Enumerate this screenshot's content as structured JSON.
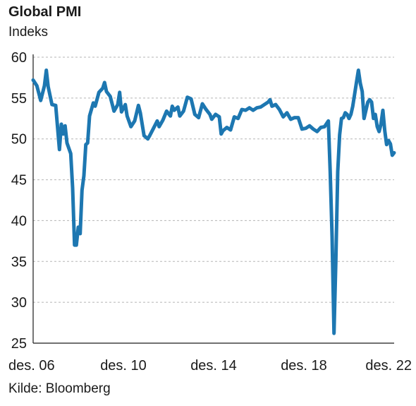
{
  "chart_data": {
    "type": "line",
    "title": "Global PMI",
    "ylabel": "Indeks",
    "source": "Kilde: Bloomberg",
    "ylim": [
      25,
      60
    ],
    "yticks": [
      25,
      30,
      35,
      40,
      45,
      50,
      55,
      60
    ],
    "grid": true,
    "xlim": [
      "2006-12",
      "2022-12"
    ],
    "x_tick_labels": [
      {
        "x": "2006-12",
        "label": "des. 06"
      },
      {
        "x": "2010-12",
        "label": "des. 10"
      },
      {
        "x": "2014-12",
        "label": "des. 14"
      },
      {
        "x": "2018-12",
        "label": "des. 18"
      },
      {
        "x": "2022-12",
        "label": "des. 22"
      }
    ],
    "series": [
      {
        "color": "#1d77b1",
        "points": [
          [
            "2006-12",
            57.2
          ],
          [
            "2007-02",
            56.5
          ],
          [
            "2007-04",
            54.7
          ],
          [
            "2007-06",
            56.5
          ],
          [
            "2007-07",
            58.4
          ],
          [
            "2007-08",
            56.4
          ],
          [
            "2007-10",
            54.2
          ],
          [
            "2007-12",
            54.1
          ],
          [
            "2008-02",
            48.7
          ],
          [
            "2008-03",
            51.8
          ],
          [
            "2008-04",
            50.6
          ],
          [
            "2008-05",
            51.6
          ],
          [
            "2008-06",
            49.5
          ],
          [
            "2008-08",
            48.2
          ],
          [
            "2008-09",
            44.0
          ],
          [
            "2008-10",
            37.0
          ],
          [
            "2008-11",
            37.0
          ],
          [
            "2008-12",
            39.2
          ],
          [
            "2009-01",
            38.4
          ],
          [
            "2009-02",
            43.7
          ],
          [
            "2009-03",
            45.5
          ],
          [
            "2009-04",
            49.3
          ],
          [
            "2009-05",
            49.5
          ],
          [
            "2009-06",
            52.8
          ],
          [
            "2009-08",
            54.4
          ],
          [
            "2009-09",
            54.0
          ],
          [
            "2009-11",
            55.7
          ],
          [
            "2010-01",
            56.2
          ],
          [
            "2010-02",
            56.9
          ],
          [
            "2010-03",
            55.8
          ],
          [
            "2010-05",
            55.2
          ],
          [
            "2010-07",
            53.4
          ],
          [
            "2010-09",
            54.2
          ],
          [
            "2010-10",
            55.7
          ],
          [
            "2010-11",
            53.3
          ],
          [
            "2011-01",
            54.2
          ],
          [
            "2011-02",
            52.8
          ],
          [
            "2011-04",
            51.5
          ],
          [
            "2011-06",
            52.2
          ],
          [
            "2011-08",
            54.1
          ],
          [
            "2011-09",
            53.2
          ],
          [
            "2011-11",
            50.4
          ],
          [
            "2012-01",
            50.0
          ],
          [
            "2012-02",
            50.4
          ],
          [
            "2012-04",
            51.3
          ],
          [
            "2012-06",
            52.2
          ],
          [
            "2012-07",
            51.5
          ],
          [
            "2012-09",
            52.3
          ],
          [
            "2012-11",
            53.4
          ],
          [
            "2013-01",
            52.8
          ],
          [
            "2013-02",
            54.0
          ],
          [
            "2013-03",
            53.5
          ],
          [
            "2013-05",
            53.9
          ],
          [
            "2013-06",
            52.8
          ],
          [
            "2013-08",
            53.4
          ],
          [
            "2013-10",
            55.1
          ],
          [
            "2013-12",
            54.9
          ],
          [
            "2014-02",
            53.0
          ],
          [
            "2014-04",
            52.6
          ],
          [
            "2014-06",
            54.3
          ],
          [
            "2014-08",
            53.6
          ],
          [
            "2014-10",
            53.0
          ],
          [
            "2014-11",
            52.4
          ],
          [
            "2015-01",
            53.0
          ],
          [
            "2015-03",
            52.7
          ],
          [
            "2015-04",
            50.6
          ],
          [
            "2015-05",
            51.0
          ],
          [
            "2015-07",
            51.4
          ],
          [
            "2015-09",
            51.1
          ],
          [
            "2015-11",
            52.7
          ],
          [
            "2016-01",
            52.5
          ],
          [
            "2016-03",
            53.6
          ],
          [
            "2016-05",
            53.5
          ],
          [
            "2016-07",
            53.8
          ],
          [
            "2016-09",
            53.5
          ],
          [
            "2016-11",
            53.8
          ],
          [
            "2017-01",
            53.9
          ],
          [
            "2017-03",
            54.2
          ],
          [
            "2017-05",
            54.5
          ],
          [
            "2017-06",
            54.8
          ],
          [
            "2017-07",
            54.0
          ],
          [
            "2017-09",
            54.2
          ],
          [
            "2017-11",
            53.6
          ],
          [
            "2018-01",
            52.7
          ],
          [
            "2018-03",
            53.2
          ],
          [
            "2018-05",
            52.4
          ],
          [
            "2018-07",
            52.6
          ],
          [
            "2018-09",
            52.6
          ],
          [
            "2018-11",
            51.2
          ],
          [
            "2019-01",
            51.3
          ],
          [
            "2019-03",
            51.6
          ],
          [
            "2019-05",
            51.2
          ],
          [
            "2019-07",
            50.9
          ],
          [
            "2019-09",
            51.4
          ],
          [
            "2019-11",
            51.5
          ],
          [
            "2020-01",
            52.2
          ],
          [
            "2020-02",
            46.0
          ],
          [
            "2020-03",
            38.0
          ],
          [
            "2020-04",
            26.2
          ],
          [
            "2020-05",
            35.0
          ],
          [
            "2020-06",
            46.0
          ],
          [
            "2020-07",
            50.5
          ],
          [
            "2020-08",
            52.5
          ],
          [
            "2020-09",
            52.6
          ],
          [
            "2020-10",
            53.2
          ],
          [
            "2020-11",
            53.0
          ],
          [
            "2020-12",
            52.5
          ],
          [
            "2021-01",
            53.0
          ],
          [
            "2021-02",
            54.0
          ],
          [
            "2021-03",
            55.5
          ],
          [
            "2021-04",
            57.0
          ],
          [
            "2021-05",
            58.4
          ],
          [
            "2021-06",
            56.8
          ],
          [
            "2021-07",
            55.8
          ],
          [
            "2021-08",
            52.5
          ],
          [
            "2021-09",
            53.5
          ],
          [
            "2021-10",
            54.5
          ],
          [
            "2021-11",
            54.8
          ],
          [
            "2021-12",
            54.5
          ],
          [
            "2022-01",
            52.5
          ],
          [
            "2022-02",
            53.0
          ],
          [
            "2022-03",
            51.5
          ],
          [
            "2022-04",
            50.9
          ],
          [
            "2022-05",
            51.8
          ],
          [
            "2022-06",
            53.5
          ],
          [
            "2022-07",
            51.0
          ],
          [
            "2022-08",
            49.3
          ],
          [
            "2022-09",
            49.8
          ],
          [
            "2022-10",
            49.4
          ],
          [
            "2022-11",
            48.0
          ],
          [
            "2022-12",
            48.3
          ]
        ]
      }
    ]
  }
}
